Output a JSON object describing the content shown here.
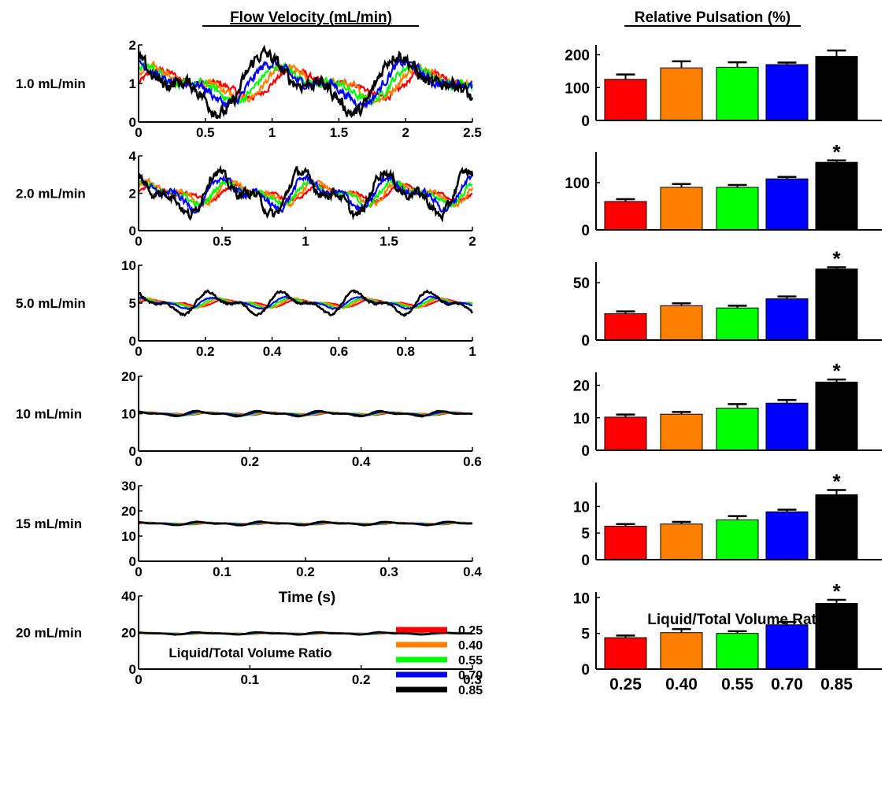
{
  "left_title": "Flow Velocity (mL/min)",
  "right_title": "Relative Pulsation (%)",
  "left_xlabel": "Time (s)",
  "right_xlabel": "Liquid/Total Volume Ratio",
  "legend": {
    "title": "Liquid/Total Volume Ratio",
    "entries": [
      "0.25",
      "0.40",
      "0.55",
      "0.70",
      "0.85"
    ]
  },
  "series_colors": [
    "#ff0000",
    "#ff8000",
    "#00ff00",
    "#0000ff",
    "#000000"
  ],
  "chart_data": [
    {
      "type": "line",
      "row_label": "1.0 mL/min",
      "xlim": [
        0,
        2.5
      ],
      "ylim": [
        0,
        2
      ],
      "xticks": [
        "0",
        "0.5",
        "1",
        "1.5",
        "2",
        "2.5"
      ],
      "yticks": [
        "0",
        "1",
        "2"
      ],
      "mean_flow": 1.0,
      "series": [
        {
          "name": "0.25",
          "amplitude": 0.25,
          "period": 1.0
        },
        {
          "name": "0.40",
          "amplitude": 0.3,
          "period": 1.0
        },
        {
          "name": "0.55",
          "amplitude": 0.32,
          "period": 1.0
        },
        {
          "name": "0.70",
          "amplitude": 0.38,
          "period": 1.0
        },
        {
          "name": "0.85",
          "amplitude": 0.55,
          "period": 1.0
        }
      ]
    },
    {
      "type": "line",
      "row_label": "2.0 mL/min",
      "xlim": [
        0,
        2
      ],
      "ylim": [
        0,
        4
      ],
      "xticks": [
        "0",
        "0.5",
        "1",
        "1.5",
        "2"
      ],
      "yticks": [
        "0",
        "2",
        "4"
      ],
      "mean_flow": 2.0,
      "series": [
        {
          "name": "0.25",
          "amplitude": 0.3,
          "period": 0.5
        },
        {
          "name": "0.40",
          "amplitude": 0.45,
          "period": 0.5
        },
        {
          "name": "0.55",
          "amplitude": 0.45,
          "period": 0.5
        },
        {
          "name": "0.70",
          "amplitude": 0.6,
          "period": 0.5
        },
        {
          "name": "0.85",
          "amplitude": 0.85,
          "period": 0.5
        }
      ]
    },
    {
      "type": "line",
      "row_label": "5.0 mL/min",
      "xlim": [
        0,
        1
      ],
      "ylim": [
        0,
        10
      ],
      "xticks": [
        "0",
        "0.2",
        "0.4",
        "0.6",
        "0.8",
        "1"
      ],
      "yticks": [
        "0",
        "5",
        "10"
      ],
      "mean_flow": 5.0,
      "series": [
        {
          "name": "0.25",
          "amplitude": 0.35,
          "period": 0.22
        },
        {
          "name": "0.40",
          "amplitude": 0.45,
          "period": 0.22
        },
        {
          "name": "0.55",
          "amplitude": 0.45,
          "period": 0.22
        },
        {
          "name": "0.70",
          "amplitude": 0.55,
          "period": 0.22
        },
        {
          "name": "0.85",
          "amplitude": 1.1,
          "period": 0.22
        }
      ]
    },
    {
      "type": "line",
      "row_label": "10 mL/min",
      "xlim": [
        0,
        0.6
      ],
      "ylim": [
        0,
        20
      ],
      "xticks": [
        "0",
        "0.2",
        "0.4",
        "0.6"
      ],
      "yticks": [
        "0",
        "10",
        "20"
      ],
      "mean_flow": 10.0,
      "series": [
        {
          "name": "0.25",
          "amplitude": 0.25,
          "period": 0.11
        },
        {
          "name": "0.40",
          "amplitude": 0.25,
          "period": 0.11
        },
        {
          "name": "0.55",
          "amplitude": 0.3,
          "period": 0.11
        },
        {
          "name": "0.70",
          "amplitude": 0.35,
          "period": 0.11
        },
        {
          "name": "0.85",
          "amplitude": 0.5,
          "period": 0.11
        }
      ]
    },
    {
      "type": "line",
      "row_label": "15 mL/min",
      "xlim": [
        0,
        0.4
      ],
      "ylim": [
        0,
        30
      ],
      "xticks": [
        "0",
        "0.1",
        "0.2",
        "0.3",
        "0.4"
      ],
      "yticks": [
        "0",
        "10",
        "20",
        "30"
      ],
      "mean_flow": 15.0,
      "series": [
        {
          "name": "0.25",
          "amplitude": 0.25,
          "period": 0.075
        },
        {
          "name": "0.40",
          "amplitude": 0.25,
          "period": 0.075
        },
        {
          "name": "0.55",
          "amplitude": 0.3,
          "period": 0.075
        },
        {
          "name": "0.70",
          "amplitude": 0.35,
          "period": 0.075
        },
        {
          "name": "0.85",
          "amplitude": 0.5,
          "period": 0.075
        }
      ]
    },
    {
      "type": "line",
      "row_label": "20 mL/min",
      "xlim": [
        0,
        0.3
      ],
      "ylim": [
        0,
        40
      ],
      "xticks": [
        "0",
        "0.1",
        "0.2",
        "0.3"
      ],
      "yticks": [
        "0",
        "20",
        "40"
      ],
      "mean_flow": 19.5,
      "series": [
        {
          "name": "0.25",
          "amplitude": 0.25,
          "period": 0.055
        },
        {
          "name": "0.40",
          "amplitude": 0.25,
          "period": 0.055
        },
        {
          "name": "0.55",
          "amplitude": 0.3,
          "period": 0.055
        },
        {
          "name": "0.70",
          "amplitude": 0.35,
          "period": 0.055
        },
        {
          "name": "0.85",
          "amplitude": 0.45,
          "period": 0.055
        }
      ]
    },
    {
      "type": "bar",
      "row_label": "1.0 mL/min",
      "categories": [
        "0.25",
        "0.40",
        "0.55",
        "0.70",
        "0.85"
      ],
      "values": [
        125,
        160,
        162,
        170,
        195
      ],
      "errors": [
        15,
        20,
        15,
        6,
        18
      ],
      "ylim": [
        0,
        230
      ],
      "yticks": [
        "0",
        "100",
        "200"
      ],
      "significant": [
        false,
        false,
        false,
        false,
        false
      ]
    },
    {
      "type": "bar",
      "row_label": "2.0 mL/min",
      "categories": [
        "0.25",
        "0.40",
        "0.55",
        "0.70",
        "0.85"
      ],
      "values": [
        60,
        90,
        90,
        108,
        143
      ],
      "errors": [
        5,
        7,
        5,
        4,
        4
      ],
      "ylim": [
        0,
        165
      ],
      "yticks": [
        "0",
        "100"
      ],
      "significant": [
        false,
        false,
        false,
        false,
        true
      ]
    },
    {
      "type": "bar",
      "row_label": "5.0 mL/min",
      "categories": [
        "0.25",
        "0.40",
        "0.55",
        "0.70",
        "0.85"
      ],
      "values": [
        23,
        30,
        28,
        36,
        62
      ],
      "errors": [
        2,
        2,
        2,
        2,
        1.5
      ],
      "ylim": [
        0,
        68
      ],
      "yticks": [
        "0",
        "50"
      ],
      "significant": [
        false,
        false,
        false,
        false,
        true
      ]
    },
    {
      "type": "bar",
      "row_label": "10 mL/min",
      "categories": [
        "0.25",
        "0.40",
        "0.55",
        "0.70",
        "0.85"
      ],
      "values": [
        10.2,
        11.1,
        13,
        14.5,
        21
      ],
      "errors": [
        0.8,
        0.7,
        1.2,
        1.0,
        0.8
      ],
      "ylim": [
        0,
        24
      ],
      "yticks": [
        "0",
        "10",
        "20"
      ],
      "significant": [
        false,
        false,
        false,
        false,
        true
      ]
    },
    {
      "type": "bar",
      "row_label": "15 mL/min",
      "categories": [
        "0.25",
        "0.40",
        "0.55",
        "0.70",
        "0.85"
      ],
      "values": [
        6.3,
        6.7,
        7.5,
        9,
        12.2
      ],
      "errors": [
        0.4,
        0.4,
        0.7,
        0.4,
        0.9
      ],
      "ylim": [
        0,
        14.5
      ],
      "yticks": [
        "0",
        "5",
        "10"
      ],
      "significant": [
        false,
        false,
        false,
        false,
        true
      ]
    },
    {
      "type": "bar",
      "row_label": "20 mL/min",
      "categories": [
        "0.25",
        "0.40",
        "0.55",
        "0.70",
        "0.85"
      ],
      "values": [
        4.4,
        5.1,
        5.0,
        6.2,
        9.2
      ],
      "errors": [
        0.3,
        0.5,
        0.3,
        0.4,
        0.5
      ],
      "ylim": [
        0,
        10.8
      ],
      "yticks": [
        "0",
        "5",
        "10"
      ],
      "significant": [
        false,
        false,
        false,
        false,
        true
      ]
    }
  ]
}
